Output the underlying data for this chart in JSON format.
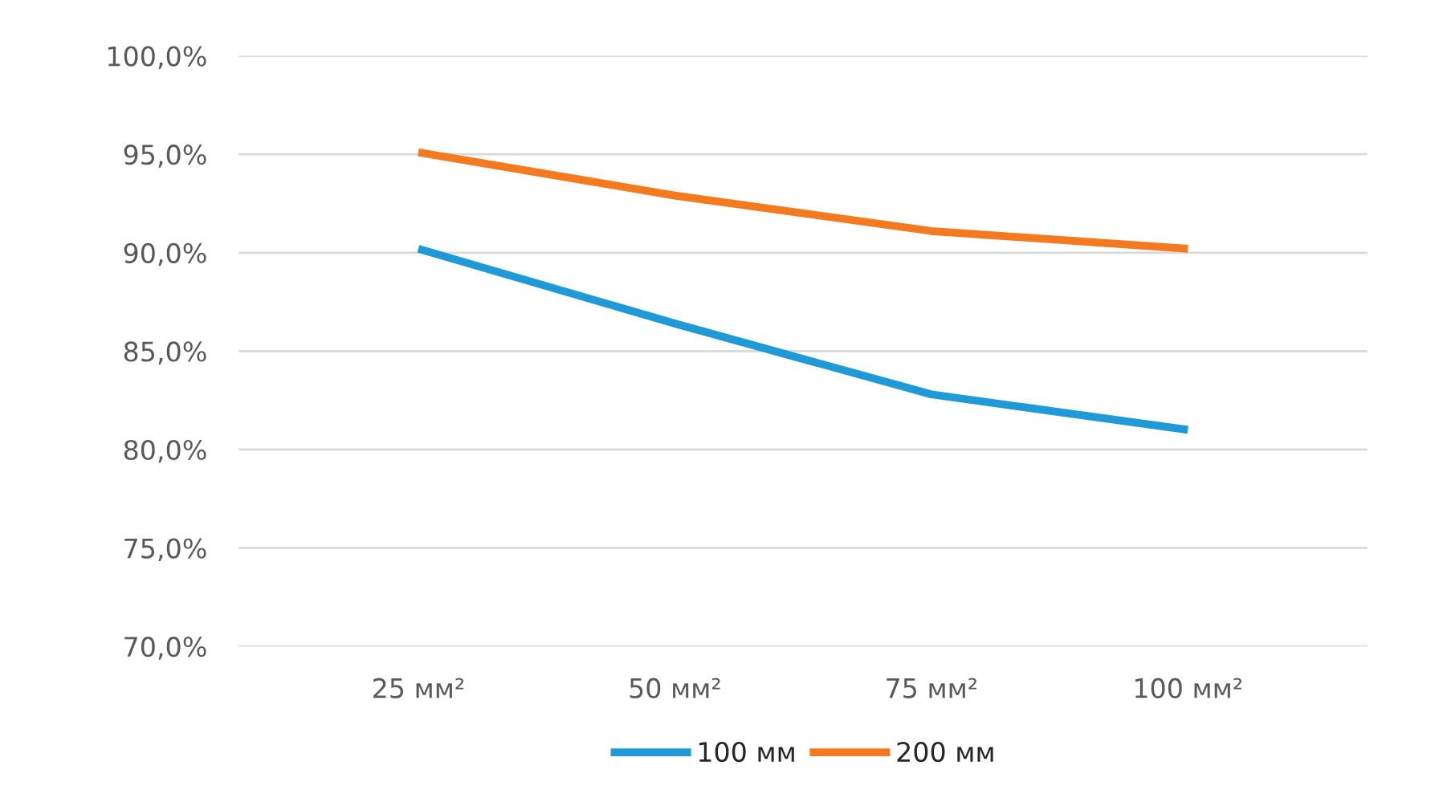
{
  "chart_data": {
    "type": "line",
    "categories": [
      "25 мм²",
      "50 мм²",
      "75 мм²",
      "100 мм²"
    ],
    "series": [
      {
        "name": "100 мм",
        "color": "#1f9ad6",
        "values": [
          90.2,
          86.4,
          82.8,
          81.0
        ]
      },
      {
        "name": "200 мм",
        "color": "#f47a20",
        "values": [
          95.1,
          92.9,
          91.1,
          90.2
        ]
      }
    ],
    "ylim": [
      70,
      100
    ],
    "yticks": [
      {
        "value": 70,
        "label": "70,0%"
      },
      {
        "value": 75,
        "label": "75,0%"
      },
      {
        "value": 80,
        "label": "80,0%"
      },
      {
        "value": 85,
        "label": "85,0%"
      },
      {
        "value": 90,
        "label": "90,0%"
      },
      {
        "value": 95,
        "label": "95,0%"
      },
      {
        "value": 100,
        "label": "100,0%"
      }
    ],
    "grid": "y",
    "legend": "bottom",
    "line_style": "solid",
    "marker": "none"
  }
}
